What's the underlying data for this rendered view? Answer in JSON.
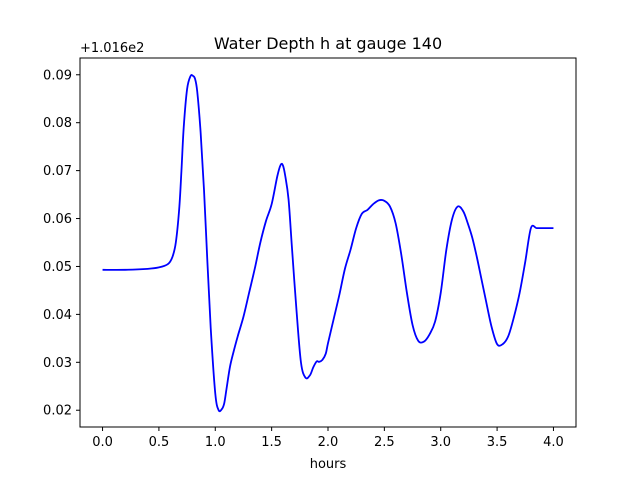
{
  "chart_data": {
    "type": "line",
    "title": "Water Depth h at gauge 140",
    "xlabel": "hours",
    "ylabel": "",
    "y_offset_label": "+1.016e2",
    "xlim": [
      -0.2,
      4.2
    ],
    "ylim": [
      0.0165,
      0.0935
    ],
    "grid": false,
    "x_ticks": [
      0.0,
      0.5,
      1.0,
      1.5,
      2.0,
      2.5,
      3.0,
      3.5,
      4.0
    ],
    "x_tick_labels": [
      "0.0",
      "0.5",
      "1.0",
      "1.5",
      "2.0",
      "2.5",
      "3.0",
      "3.5",
      "4.0"
    ],
    "y_ticks": [
      0.02,
      0.03,
      0.04,
      0.05,
      0.06,
      0.07,
      0.08,
      0.09
    ],
    "y_tick_labels": [
      "0.02",
      "0.03",
      "0.04",
      "0.05",
      "0.06",
      "0.07",
      "0.08",
      "0.09"
    ],
    "series": [
      {
        "color": "#0000ff",
        "x": [
          0.0,
          0.2,
          0.4,
          0.5,
          0.58,
          0.62,
          0.65,
          0.68,
          0.7,
          0.72,
          0.75,
          0.78,
          0.8,
          0.82,
          0.84,
          0.87,
          0.9,
          0.93,
          0.96,
          1.0,
          1.03,
          1.06,
          1.08,
          1.1,
          1.13,
          1.16,
          1.2,
          1.25,
          1.3,
          1.35,
          1.4,
          1.45,
          1.5,
          1.55,
          1.58,
          1.6,
          1.62,
          1.65,
          1.68,
          1.72,
          1.76,
          1.8,
          1.84,
          1.87,
          1.9,
          1.92,
          1.95,
          1.98,
          2.0,
          2.05,
          2.1,
          2.15,
          2.2,
          2.25,
          2.3,
          2.35,
          2.4,
          2.45,
          2.5,
          2.55,
          2.6,
          2.65,
          2.7,
          2.75,
          2.8,
          2.85,
          2.9,
          2.95,
          3.0,
          3.05,
          3.1,
          3.15,
          3.2,
          3.24,
          3.28,
          3.32,
          3.36,
          3.4,
          3.45,
          3.5,
          3.55,
          3.6,
          3.65,
          3.7,
          3.75,
          3.8,
          3.85,
          3.9,
          3.95,
          4.0
        ],
        "y": [
          0.0493,
          0.0493,
          0.0495,
          0.0498,
          0.0505,
          0.052,
          0.055,
          0.062,
          0.07,
          0.079,
          0.087,
          0.0897,
          0.0898,
          0.0892,
          0.0865,
          0.078,
          0.066,
          0.051,
          0.037,
          0.0235,
          0.02,
          0.0203,
          0.0215,
          0.0245,
          0.029,
          0.032,
          0.0355,
          0.0395,
          0.0445,
          0.0495,
          0.055,
          0.0595,
          0.063,
          0.0688,
          0.0712,
          0.0711,
          0.069,
          0.064,
          0.054,
          0.041,
          0.03,
          0.0268,
          0.0273,
          0.029,
          0.0302,
          0.0301,
          0.0305,
          0.0318,
          0.034,
          0.039,
          0.044,
          0.0495,
          0.0535,
          0.058,
          0.061,
          0.0618,
          0.063,
          0.0638,
          0.0637,
          0.0625,
          0.059,
          0.0525,
          0.0445,
          0.0378,
          0.0345,
          0.0343,
          0.0358,
          0.0385,
          0.0445,
          0.0535,
          0.0598,
          0.0625,
          0.0615,
          0.059,
          0.056,
          0.052,
          0.0475,
          0.043,
          0.0375,
          0.0338,
          0.0338,
          0.0355,
          0.0395,
          0.0445,
          0.051,
          0.058,
          0.058,
          0.058,
          0.058,
          0.058
        ]
      }
    ]
  }
}
